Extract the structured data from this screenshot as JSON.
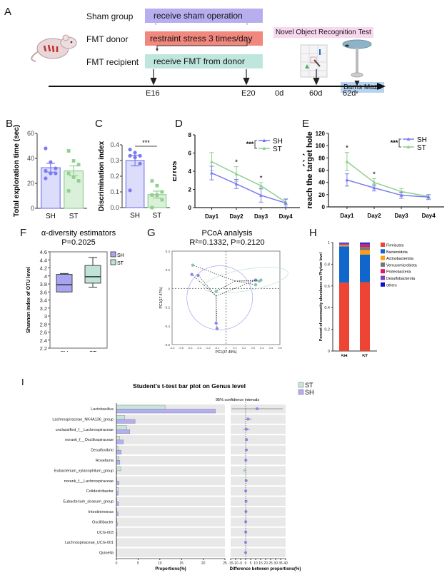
{
  "panel_letters": [
    "A",
    "B",
    "C",
    "D",
    "E",
    "F",
    "G",
    "H",
    "I"
  ],
  "timeline": {
    "groups": [
      {
        "label": "Sham group",
        "box_text": "receive sham operation",
        "color": "#b7aef0"
      },
      {
        "label": "FMT donor",
        "box_text": "restraint stress 3 times/day",
        "color": "#f2877e"
      },
      {
        "label": "FMT recipient",
        "box_text": "receive FMT from donor",
        "color": "#bfe6dc"
      }
    ],
    "tests": [
      {
        "label": "Novel Object Recognition Test",
        "color": "#f7d8ef"
      },
      {
        "label": "Barns Maze",
        "color": "#b6d3f0"
      }
    ],
    "ticks": [
      "E16",
      "E20",
      "0d",
      "60d",
      "62d"
    ]
  },
  "chart_data": [
    {
      "id": "B",
      "type": "bar",
      "ylabel": "Total exploration time (sec)",
      "categories": [
        "SH",
        "ST"
      ],
      "values": [
        32.5,
        30
      ],
      "sem": [
        3.5,
        4
      ],
      "points": [
        [
          48,
          37,
          32,
          30,
          28,
          28,
          24
        ],
        [
          46,
          38,
          35,
          28,
          25,
          22,
          14
        ]
      ],
      "ylim": [
        0,
        60
      ],
      "yticks": [
        "0",
        "20",
        "40",
        "60"
      ],
      "colors": {
        "SH": "#7b7bf0",
        "ST": "#7ec87e"
      }
    },
    {
      "id": "C",
      "type": "bar",
      "ylabel": "Discrimination index",
      "categories": [
        "SH",
        "ST"
      ],
      "values": [
        0.3,
        0.083
      ],
      "sem": [
        0.034,
        0.022
      ],
      "points": [
        [
          0.37,
          0.35,
          0.33,
          0.33,
          0.32,
          0.28,
          0.11
        ],
        [
          0.17,
          0.14,
          0.1,
          0.08,
          0.08,
          0.05,
          0.0
        ]
      ],
      "ylim": [
        0,
        0.4
      ],
      "yticks": [
        "0.0",
        "0.1",
        "0.2",
        "0.3",
        "0.4"
      ],
      "significance": "***"
    },
    {
      "id": "D",
      "type": "line",
      "ylabel": "Erros",
      "x": [
        "Day1",
        "Day2",
        "Day3",
        "Day4"
      ],
      "series": [
        {
          "name": "SH",
          "values": [
            3.8,
            2.6,
            1.35,
            0.5
          ],
          "err": [
            0.75,
            0.5,
            0.75,
            0.45
          ],
          "color": "#7b7bf0"
        },
        {
          "name": "ST",
          "values": [
            5.05,
            3.7,
            2.4,
            0.6
          ],
          "err": [
            1.0,
            0.8,
            0.35,
            0.3
          ],
          "color": "#8fd08f"
        }
      ],
      "ylim": [
        0,
        8
      ],
      "yticks": [
        "0",
        "2",
        "4",
        "6",
        "8"
      ],
      "point_significance": [
        "",
        "*",
        "*",
        ""
      ],
      "legend_significance": "***",
      "legend": "top-right"
    },
    {
      "id": "E",
      "type": "line",
      "ylabel": "Lantency(s) to reach the target hole",
      "x": [
        "Day1",
        "Day2",
        "Day3",
        "Day4"
      ],
      "series": [
        {
          "name": "SH",
          "values": [
            44,
            31,
            19,
            16
          ],
          "err": [
            10,
            5,
            5,
            4
          ],
          "color": "#7b7bf0"
        },
        {
          "name": "ST",
          "values": [
            74,
            40,
            25,
            17
          ],
          "err": [
            15,
            6,
            5,
            3
          ],
          "color": "#8fd08f"
        }
      ],
      "ylim": [
        0,
        120
      ],
      "yticks": [
        "0",
        "20",
        "40",
        "60",
        "80",
        "100",
        "120"
      ],
      "point_significance": [
        "*",
        "*",
        "",
        ""
      ],
      "legend_significance": "***",
      "legend": "top-right"
    },
    {
      "id": "F",
      "type": "box",
      "title": "α-diversity estimators",
      "subtitle": "P=0.2025",
      "ylabel": "Shannon index of OTU level",
      "categories": [
        "SH",
        "ST"
      ],
      "boxes": [
        {
          "name": "SH",
          "min": 3.6,
          "q1": 3.6,
          "median": 3.78,
          "q3": 4.04,
          "max": 4.06,
          "color": "#a9a4f2"
        },
        {
          "name": "ST",
          "min": 3.72,
          "q1": 3.82,
          "median": 3.98,
          "q3": 4.26,
          "max": 4.46,
          "color": "#bfe3d6"
        }
      ],
      "ylim": [
        2.2,
        4.6
      ],
      "yticks": [
        "2.2",
        "2.4",
        "2.6",
        "2.8",
        "3",
        "3.2",
        "3.4",
        "3.6",
        "3.8",
        "4",
        "4.2",
        "4.4",
        "4.6"
      ],
      "legend": "top-right"
    },
    {
      "id": "G",
      "type": "scatter",
      "title": "PCoA analysis",
      "subtitle": "R²=0.1332, P=0.2120",
      "xlabel": "PC1(37.45%)",
      "ylabel": "PC2(17.47%)",
      "xlim": [
        -0.6,
        0.6
      ],
      "ylim": [
        -0.6,
        0.4
      ],
      "xticks": [
        "-0.6",
        "-0.5",
        "-0.4",
        "-0.3",
        "-0.2",
        "-0.1",
        "0",
        "0.1",
        "0.2",
        "0.3",
        "0.4",
        "0.5",
        "0.6"
      ],
      "yticks": [
        "-0.6",
        "-0.4",
        "-0.2",
        "0",
        "0.2",
        "0.4"
      ],
      "series": [
        {
          "name": "SH",
          "color": "#8a86ec",
          "points": [
            [
              -0.38,
              0.15
            ],
            [
              -0.31,
              0.14
            ],
            [
              -0.11,
              -0.37
            ],
            [
              -0.1,
              -0.43
            ],
            [
              0.33,
              0.09
            ]
          ],
          "centroid": [
            -0.11,
            -0.08
          ]
        },
        {
          "name": "ST",
          "color": "#7fc9b0",
          "points": [
            [
              -0.37,
              0.25
            ],
            [
              -0.11,
              -0.03
            ],
            [
              0.33,
              0.04
            ],
            [
              0.37,
              0.08
            ],
            [
              0.39,
              0.09
            ]
          ],
          "centroid": [
            0.1,
            0.08
          ]
        }
      ]
    },
    {
      "id": "H",
      "type": "stacked-bar",
      "ylabel": "Percent of community abundance on Phylum level",
      "categories": [
        "SH",
        "ST"
      ],
      "ylim": [
        0,
        1
      ],
      "yticks": [
        "0",
        "0.2",
        "0.4",
        "0.6",
        "0.8",
        "1"
      ],
      "series": [
        {
          "name": "Firmicutes",
          "color": "#ee4433",
          "values": [
            0.63,
            0.635
          ]
        },
        {
          "name": "Bacteroidota",
          "color": "#1166cc",
          "values": [
            0.335,
            0.255
          ]
        },
        {
          "name": "Actinobacteriota",
          "color": "#ff9f10",
          "values": [
            0.01,
            0.04
          ]
        },
        {
          "name": "Verrucomicrobiota",
          "color": "#777777",
          "values": [
            0.005,
            0.03
          ]
        },
        {
          "name": "Proteobacteria",
          "color": "#e8175d",
          "values": [
            0.005,
            0.02
          ]
        },
        {
          "name": "Desulfobacterota",
          "color": "#7744bb",
          "values": [
            0.01,
            0.01
          ]
        },
        {
          "name": "others",
          "color": "#1111cc",
          "values": [
            0.005,
            0.01
          ]
        }
      ],
      "legend": "right"
    },
    {
      "id": "I",
      "type": "bar",
      "title": "Student's t-test bar plot on Genus level",
      "ci_title": "95% confidence intervals",
      "xlabel": "Proportions(%)",
      "ci_xlabel": "Difference between proportions(%)",
      "xlim": [
        0,
        25
      ],
      "xticks": [
        "0",
        "5",
        "10",
        "15",
        "20",
        "25"
      ],
      "ci_xlim": [
        -15,
        40
      ],
      "ci_xticks": [
        "-15",
        "-10",
        "-5",
        "0",
        "5",
        "10",
        "15",
        "20",
        "25",
        "30",
        "35",
        "40"
      ],
      "categories": [
        "Lactobacillus",
        "Lachnospiraceae_NK4A136_group",
        "unclassified_f__Lachnospiraceae",
        "norank_f__Oscillospiraceae",
        "Desulfovibrio",
        "Roseburia",
        "Eubacterium_xylanophilum_group",
        "norank_f__Lachnospiraceae",
        "Colidextribacter",
        "Eubacterium_siraeum_group",
        "Intestinimonas",
        "Oscillibacter",
        "UCG-003",
        "Lachnospiraceae_UCG-001",
        "Quinella"
      ],
      "series": [
        {
          "name": "ST",
          "color": "#c6e6dc",
          "values": [
            11.2,
            1.9,
            2.4,
            0.7,
            0.4,
            0.6,
            1.0,
            0.1,
            0.4,
            0.1,
            0.1,
            0.1,
            0.05,
            0.05,
            0.05
          ]
        },
        {
          "name": "SH",
          "color": "#b4aef2",
          "values": [
            22.8,
            4.3,
            3.1,
            1.6,
            1.1,
            0.8,
            0.1,
            0.6,
            0.4,
            0.5,
            0.4,
            0.2,
            0.15,
            0.05,
            0.05
          ]
        }
      ],
      "ci": [
        {
          "diff": 11.5,
          "lo": -14,
          "hi": 37
        },
        {
          "diff": 2.4,
          "lo": -1,
          "hi": 6
        },
        {
          "diff": 0.7,
          "lo": -2.5,
          "hi": 4
        },
        {
          "diff": 0.9,
          "lo": -0.5,
          "hi": 2
        },
        {
          "diff": 0.7,
          "lo": -0.5,
          "hi": 1.8
        },
        {
          "diff": 0.2,
          "lo": -0.9,
          "hi": 1.2
        },
        {
          "diff": -0.9,
          "lo": -2,
          "hi": 0.3
        },
        {
          "diff": 0.5,
          "lo": -0.2,
          "hi": 1.2
        },
        {
          "diff": 0.1,
          "lo": -0.6,
          "hi": 0.8
        },
        {
          "diff": 0.4,
          "lo": -0.8,
          "hi": 1.5
        },
        {
          "diff": 0.3,
          "lo": -0.4,
          "hi": 1
        },
        {
          "diff": 0.1,
          "lo": -0.5,
          "hi": 0.7
        },
        {
          "diff": 0.1,
          "lo": -0.3,
          "hi": 0.6
        },
        {
          "diff": 0.0,
          "lo": -0.3,
          "hi": 0.3
        },
        {
          "diff": 0.0,
          "lo": -0.3,
          "hi": 0.3
        }
      ],
      "legend": "top-right"
    }
  ]
}
